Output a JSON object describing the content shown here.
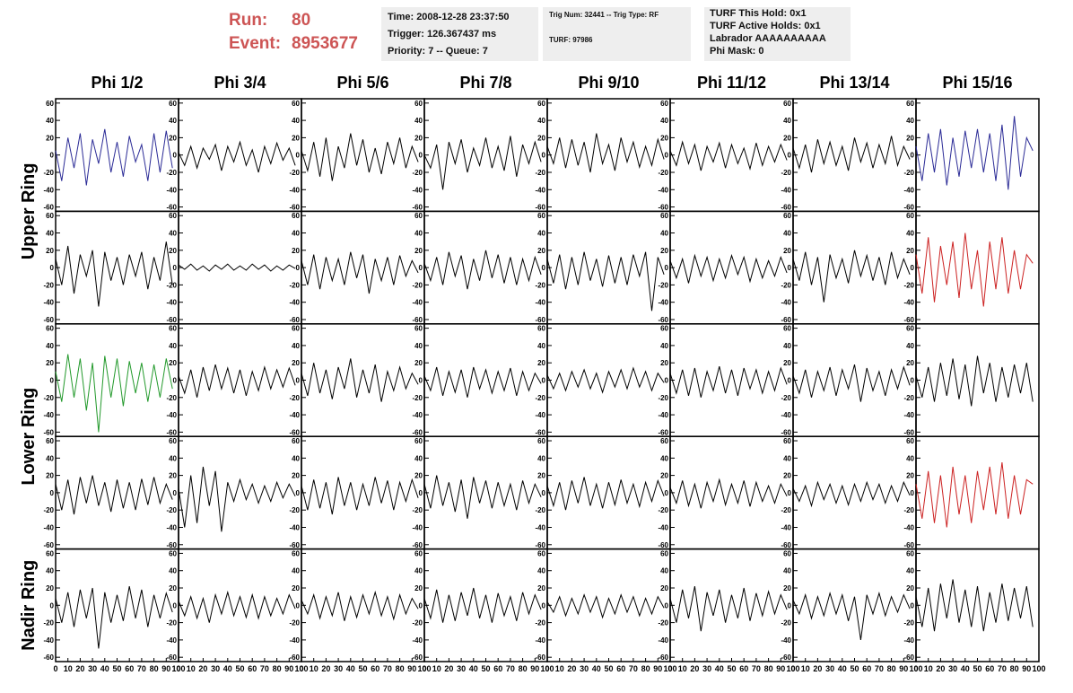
{
  "header": {
    "run_label": "Run:",
    "run": 80,
    "event_label": "Event:",
    "event": 8953677,
    "box1": [
      "Time: 2008-12-28 23:37:50",
      "Trigger: 126.367437 ms",
      "Priority: 7 -- Queue: 7"
    ],
    "box2": [
      "Trig Num: 32441 -- Trig Type: RF",
      "TURF: 97986"
    ],
    "box3": [
      "TURF This Hold: 0x1",
      "TURF Active Holds: 0x1",
      "Labrador AAAAAAAAAA",
      "Phi Mask: 0"
    ]
  },
  "chart_data": {
    "type": "line",
    "columns": [
      "Phi 1/2",
      "Phi 3/4",
      "Phi 5/6",
      "Phi 7/8",
      "Phi 9/10",
      "Phi 11/12",
      "Phi 13/14",
      "Phi 15/16"
    ],
    "rows": [
      "Upper Ring",
      "Lower Ring",
      "Nadir Ring"
    ],
    "x": [
      0,
      5,
      10,
      15,
      20,
      25,
      30,
      35,
      40,
      45,
      50,
      55,
      60,
      65,
      70,
      75,
      80,
      85,
      90,
      95
    ],
    "xlim": [
      0,
      100
    ],
    "ylim": [
      -65,
      65
    ],
    "xticks": [
      0,
      10,
      20,
      30,
      40,
      50,
      60,
      70,
      80,
      90,
      100
    ],
    "yticks": [
      -60,
      -40,
      -20,
      0,
      20,
      40,
      60
    ],
    "panels": [
      {
        "color": "#2b2b96",
        "values": [
          5,
          -30,
          20,
          -15,
          25,
          -35,
          18,
          -10,
          30,
          -20,
          15,
          -25,
          22,
          -8,
          12,
          -30,
          25,
          -20,
          28,
          -15
        ]
      },
      {
        "color": "#000000",
        "values": [
          3,
          -12,
          10,
          -15,
          8,
          -5,
          12,
          -18,
          10,
          -8,
          15,
          -12,
          6,
          -20,
          10,
          -10,
          14,
          -6,
          8,
          -12
        ]
      },
      {
        "color": "#000000",
        "values": [
          5,
          -18,
          15,
          -25,
          20,
          -30,
          10,
          -15,
          25,
          -12,
          18,
          -20,
          8,
          -22,
          15,
          -10,
          20,
          -15,
          10,
          -8
        ]
      },
      {
        "color": "#000000",
        "values": [
          0,
          -15,
          12,
          -40,
          15,
          -10,
          18,
          -20,
          8,
          -12,
          20,
          -15,
          10,
          -18,
          22,
          -25,
          12,
          -10,
          15,
          -8
        ]
      },
      {
        "color": "#000000",
        "values": [
          10,
          -10,
          20,
          -15,
          18,
          -12,
          15,
          -20,
          25,
          -10,
          12,
          -18,
          20,
          -8,
          15,
          -14,
          10,
          -12,
          18,
          -5
        ]
      },
      {
        "color": "#000000",
        "values": [
          5,
          -12,
          15,
          -10,
          12,
          -18,
          10,
          -8,
          14,
          -15,
          12,
          -10,
          8,
          -16,
          14,
          -12,
          10,
          -8,
          12,
          -6
        ]
      },
      {
        "color": "#000000",
        "values": [
          8,
          -15,
          12,
          -20,
          18,
          -10,
          15,
          -12,
          10,
          -18,
          20,
          -8,
          14,
          -15,
          12,
          -10,
          22,
          -12,
          10,
          -5
        ]
      },
      {
        "color": "#2b2b96",
        "values": [
          10,
          -30,
          25,
          -20,
          30,
          -35,
          20,
          -25,
          28,
          -15,
          30,
          -20,
          25,
          -30,
          35,
          -40,
          45,
          -25,
          20,
          5
        ]
      },
      {
        "color": "#000000",
        "values": [
          10,
          -20,
          25,
          -30,
          15,
          -10,
          20,
          -45,
          18,
          -15,
          12,
          -20,
          15,
          -10,
          18,
          -25,
          12,
          -15,
          30,
          -20
        ]
      },
      {
        "color": "#000000",
        "values": [
          3,
          -2,
          4,
          -3,
          2,
          -4,
          3,
          -2,
          4,
          -3,
          2,
          -3,
          4,
          -2,
          3,
          -4,
          2,
          -3,
          3,
          -1
        ]
      },
      {
        "color": "#000000",
        "values": [
          8,
          -20,
          15,
          -25,
          12,
          -15,
          10,
          -20,
          18,
          -12,
          15,
          -30,
          10,
          -15,
          12,
          -20,
          14,
          -10,
          8,
          -6
        ]
      },
      {
        "color": "#000000",
        "values": [
          5,
          -15,
          12,
          -20,
          18,
          -10,
          14,
          -25,
          10,
          -15,
          20,
          -12,
          15,
          -18,
          12,
          -20,
          10,
          -15,
          12,
          -8
        ]
      },
      {
        "color": "#000000",
        "values": [
          10,
          -18,
          15,
          -25,
          12,
          -20,
          18,
          -15,
          10,
          -22,
          14,
          -18,
          12,
          -20,
          15,
          -10,
          18,
          -50,
          12,
          -8
        ]
      },
      {
        "color": "#000000",
        "values": [
          8,
          -12,
          10,
          -18,
          14,
          -10,
          12,
          -15,
          10,
          -12,
          14,
          -8,
          12,
          -16,
          10,
          -12,
          8,
          -10,
          12,
          -6
        ]
      },
      {
        "color": "#000000",
        "values": [
          10,
          -15,
          18,
          -20,
          12,
          -40,
          15,
          -12,
          10,
          -18,
          20,
          -10,
          14,
          -15,
          12,
          -20,
          18,
          -12,
          10,
          -8
        ]
      },
      {
        "color": "#cc2222",
        "values": [
          15,
          -30,
          35,
          -40,
          25,
          -20,
          30,
          -35,
          40,
          -25,
          20,
          -45,
          30,
          -25,
          35,
          -30,
          20,
          -25,
          15,
          5
        ]
      },
      {
        "color": "#22992b",
        "values": [
          10,
          -25,
          30,
          -20,
          25,
          -35,
          20,
          -60,
          28,
          -20,
          25,
          -30,
          22,
          -15,
          20,
          -25,
          18,
          -20,
          25,
          -10
        ]
      },
      {
        "color": "#000000",
        "values": [
          5,
          -15,
          12,
          -20,
          15,
          -12,
          18,
          -10,
          14,
          -15,
          12,
          -18,
          10,
          -12,
          15,
          -10,
          12,
          -8,
          14,
          -6
        ]
      },
      {
        "color": "#000000",
        "values": [
          8,
          -18,
          20,
          -15,
          12,
          -22,
          15,
          -10,
          25,
          -20,
          12,
          -15,
          18,
          -25,
          10,
          -12,
          15,
          -10,
          8,
          -5
        ]
      },
      {
        "color": "#000000",
        "values": [
          5,
          -12,
          15,
          -18,
          10,
          -14,
          12,
          -20,
          15,
          -10,
          12,
          -15,
          10,
          -12,
          14,
          -18,
          10,
          -12,
          8,
          -4
        ]
      },
      {
        "color": "#000000",
        "values": [
          6,
          -10,
          8,
          -12,
          10,
          -8,
          12,
          -10,
          8,
          -14,
          10,
          -8,
          12,
          -10,
          14,
          -8,
          10,
          -12,
          8,
          -3
        ]
      },
      {
        "color": "#000000",
        "values": [
          8,
          -15,
          12,
          -18,
          14,
          -20,
          10,
          -12,
          16,
          -15,
          12,
          -18,
          14,
          -10,
          12,
          -15,
          10,
          -12,
          14,
          -5
        ]
      },
      {
        "color": "#000000",
        "values": [
          5,
          -15,
          12,
          -20,
          10,
          -12,
          15,
          -18,
          12,
          -10,
          18,
          -25,
          14,
          -12,
          10,
          -18,
          12,
          -10,
          15,
          -6
        ]
      },
      {
        "color": "#000000",
        "values": [
          5,
          -20,
          15,
          -25,
          20,
          -18,
          25,
          -22,
          18,
          -30,
          28,
          -15,
          20,
          -25,
          15,
          -20,
          18,
          -15,
          20,
          -25
        ]
      },
      {
        "color": "#000000",
        "values": [
          10,
          -20,
          15,
          -25,
          18,
          -12,
          20,
          -15,
          12,
          -22,
          15,
          -18,
          12,
          -20,
          16,
          -14,
          18,
          -12,
          10,
          -8
        ]
      },
      {
        "color": "#000000",
        "values": [
          5,
          -40,
          20,
          -35,
          30,
          -15,
          25,
          -45,
          12,
          -10,
          15,
          -8,
          10,
          -12,
          8,
          -10,
          12,
          -6,
          10,
          -4
        ]
      },
      {
        "color": "#000000",
        "values": [
          8,
          -20,
          15,
          -18,
          12,
          -25,
          18,
          -15,
          12,
          -20,
          10,
          -15,
          18,
          -12,
          14,
          -20,
          12,
          -10,
          15,
          -6
        ]
      },
      {
        "color": "#000000",
        "values": [
          10,
          -18,
          20,
          -15,
          12,
          -22,
          15,
          -30,
          18,
          -12,
          14,
          -18,
          12,
          -15,
          10,
          -20,
          14,
          -12,
          10,
          -5
        ]
      },
      {
        "color": "#000000",
        "values": [
          8,
          -15,
          12,
          -20,
          14,
          -12,
          18,
          -15,
          10,
          -18,
          12,
          -14,
          15,
          -12,
          10,
          -16,
          12,
          -10,
          14,
          -4
        ]
      },
      {
        "color": "#000000",
        "values": [
          6,
          -12,
          14,
          -15,
          10,
          -18,
          12,
          -10,
          15,
          -14,
          10,
          -12,
          14,
          -16,
          12,
          -10,
          8,
          -12,
          10,
          -4
        ]
      },
      {
        "color": "#000000",
        "values": [
          5,
          -10,
          8,
          -15,
          12,
          -8,
          10,
          -12,
          8,
          -14,
          10,
          -10,
          12,
          -8,
          10,
          -12,
          8,
          -10,
          12,
          -3
        ]
      },
      {
        "color": "#cc2222",
        "values": [
          10,
          -30,
          25,
          -35,
          20,
          -40,
          30,
          -25,
          20,
          -35,
          25,
          -20,
          30,
          -25,
          35,
          -30,
          20,
          -25,
          15,
          10
        ]
      },
      {
        "color": "#000000",
        "values": [
          8,
          -20,
          15,
          -25,
          18,
          -15,
          20,
          -50,
          15,
          -20,
          12,
          -18,
          22,
          -15,
          18,
          -25,
          12,
          -15,
          14,
          -8
        ]
      },
      {
        "color": "#000000",
        "values": [
          5,
          -12,
          10,
          -15,
          8,
          -20,
          12,
          -10,
          15,
          -12,
          10,
          -14,
          12,
          -15,
          10,
          -12,
          8,
          -10,
          12,
          -4
        ]
      },
      {
        "color": "#000000",
        "values": [
          6,
          -10,
          12,
          -15,
          10,
          -12,
          15,
          -18,
          10,
          -14,
          12,
          -10,
          15,
          -12,
          10,
          -16,
          12,
          -10,
          8,
          -4
        ]
      },
      {
        "color": "#000000",
        "values": [
          8,
          -15,
          18,
          -20,
          12,
          -18,
          15,
          -12,
          20,
          -15,
          12,
          -20,
          14,
          -12,
          10,
          -18,
          15,
          -10,
          12,
          -5
        ]
      },
      {
        "color": "#000000",
        "values": [
          4,
          -8,
          10,
          -12,
          8,
          -10,
          12,
          -8,
          10,
          -14,
          8,
          -10,
          12,
          -8,
          10,
          -12,
          8,
          -10,
          10,
          -3
        ]
      },
      {
        "color": "#000000",
        "values": [
          8,
          -20,
          18,
          -15,
          22,
          -30,
          15,
          -12,
          18,
          -20,
          12,
          -15,
          20,
          -18,
          14,
          -12,
          16,
          -10,
          12,
          -5
        ]
      },
      {
        "color": "#000000",
        "values": [
          6,
          -10,
          12,
          -15,
          10,
          -12,
          14,
          -10,
          12,
          -18,
          10,
          -40,
          12,
          -10,
          14,
          -12,
          10,
          -8,
          12,
          -4
        ]
      },
      {
        "color": "#000000",
        "values": [
          10,
          -25,
          20,
          -30,
          25,
          -15,
          30,
          -20,
          18,
          -25,
          22,
          -30,
          15,
          -20,
          25,
          -18,
          20,
          -15,
          22,
          -25
        ]
      }
    ]
  }
}
